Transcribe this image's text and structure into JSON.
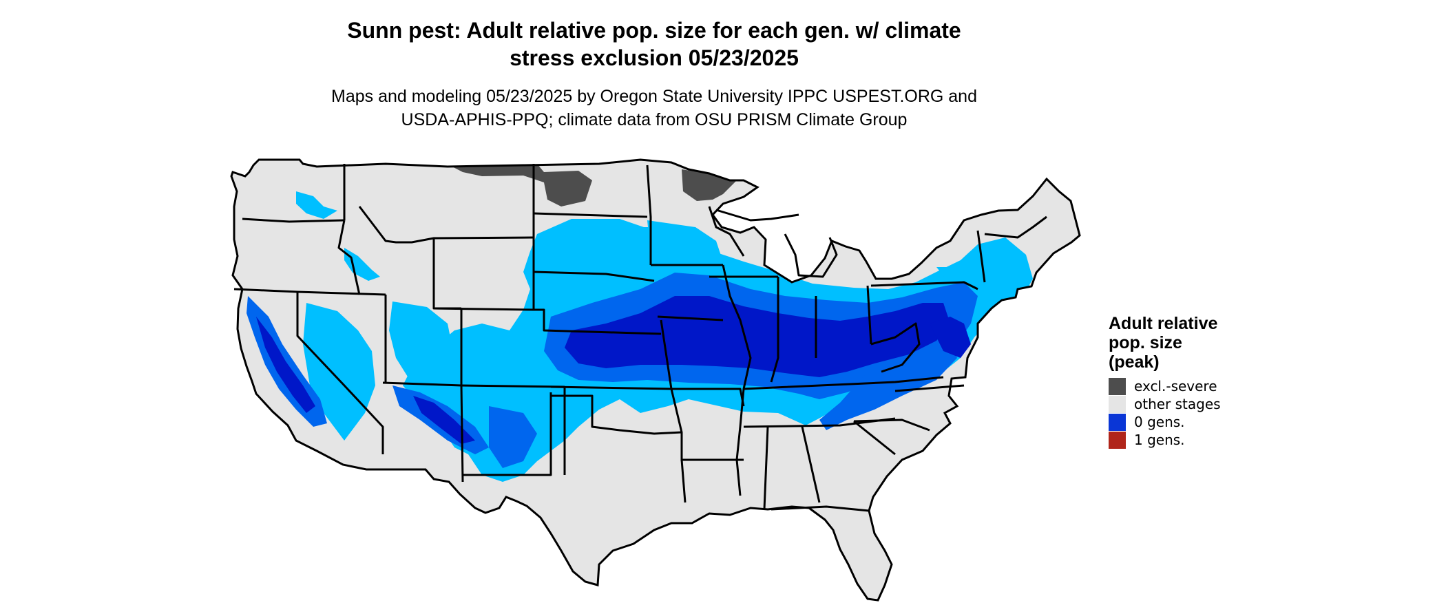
{
  "title": {
    "line1": "Sunn pest: Adult relative pop. size for each gen. w/ climate",
    "line2": "stress exclusion 05/23/2025"
  },
  "subtitle": {
    "line1": "Maps and modeling 05/23/2025 by Oregon State University IPPC USPEST.ORG and",
    "line2": "USDA-APHIS-PPQ; climate data from OSU PRISM Climate Group"
  },
  "legend": {
    "title_lines": [
      "Adult relative",
      "pop. size",
      "(peak)"
    ],
    "items": [
      {
        "label": "excl.-severe",
        "color": "#4d4d4d"
      },
      {
        "label": "other stages",
        "color": "#e5e5e5"
      },
      {
        "label": "0 gens.",
        "color": "#0a36d6"
      },
      {
        "label": "1 gens.",
        "color": "#b0251a"
      }
    ]
  },
  "map_colors": {
    "land": "#e5e5e5",
    "excluded": "#4d4d4d",
    "light_blue": "#00bfff",
    "mid_blue": "#0066ee",
    "dark_blue": "#0017c8",
    "border": "#000000"
  }
}
